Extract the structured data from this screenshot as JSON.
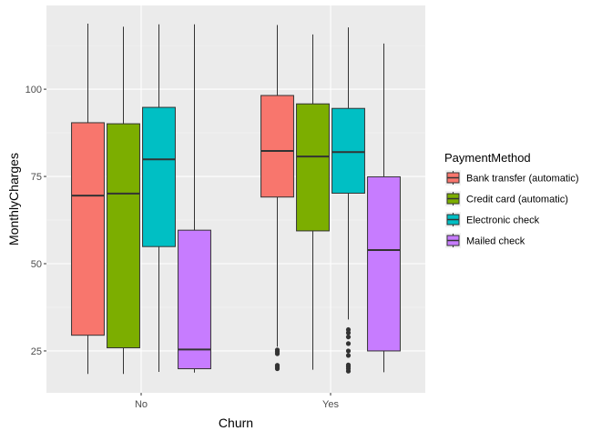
{
  "chart_data": {
    "type": "boxplot",
    "xlabel": "Churn",
    "ylabel": "MonthlyCharges",
    "categories": [
      "No",
      "Yes"
    ],
    "ylim": [
      13,
      124
    ],
    "yticks": [
      25,
      50,
      75,
      100
    ],
    "legend": {
      "title": "PaymentMethod",
      "position": "right"
    },
    "grid": true,
    "background": "#ebebeb",
    "series": [
      {
        "name": "Bank transfer (automatic)",
        "color": "#f8766d",
        "boxes": [
          {
            "category": "No",
            "min": 18.4,
            "q1": 29.5,
            "median": 69.5,
            "q3": 90.4,
            "max": 118.8,
            "outliers": []
          },
          {
            "category": "Yes",
            "min": 26.2,
            "q1": 69.1,
            "median": 82.3,
            "q3": 98.2,
            "max": 118.4,
            "outliers": [
              19.9,
              20.4,
              20.9,
              24.2,
              24.8,
              25.3
            ]
          }
        ]
      },
      {
        "name": "Credit card (automatic)",
        "color": "#7cae00",
        "boxes": [
          {
            "category": "No",
            "min": 18.4,
            "q1": 25.9,
            "median": 70.1,
            "q3": 90.1,
            "max": 117.9,
            "outliers": []
          },
          {
            "category": "Yes",
            "min": 19.6,
            "q1": 59.4,
            "median": 80.7,
            "q3": 95.8,
            "max": 115.7,
            "outliers": []
          }
        ]
      },
      {
        "name": "Electronic check",
        "color": "#00bfc4",
        "boxes": [
          {
            "category": "No",
            "min": 19.0,
            "q1": 54.9,
            "median": 79.9,
            "q3": 94.8,
            "max": 118.6,
            "outliers": []
          },
          {
            "category": "Yes",
            "min": 34.0,
            "q1": 70.2,
            "median": 82.0,
            "q3": 94.5,
            "max": 117.7,
            "outliers": [
              19.2,
              19.9,
              20.5,
              21.0,
              23.7,
              25.0,
              27.1,
              29.0,
              30.2,
              31.1
            ]
          }
        ]
      },
      {
        "name": "Mailed check",
        "color": "#c77cff",
        "boxes": [
          {
            "category": "No",
            "min": 18.8,
            "q1": 19.9,
            "median": 25.4,
            "q3": 59.6,
            "max": 118.6,
            "outliers": []
          },
          {
            "category": "Yes",
            "min": 18.9,
            "q1": 25.0,
            "median": 53.9,
            "q3": 74.9,
            "max": 113.1,
            "outliers": []
          }
        ]
      }
    ]
  }
}
